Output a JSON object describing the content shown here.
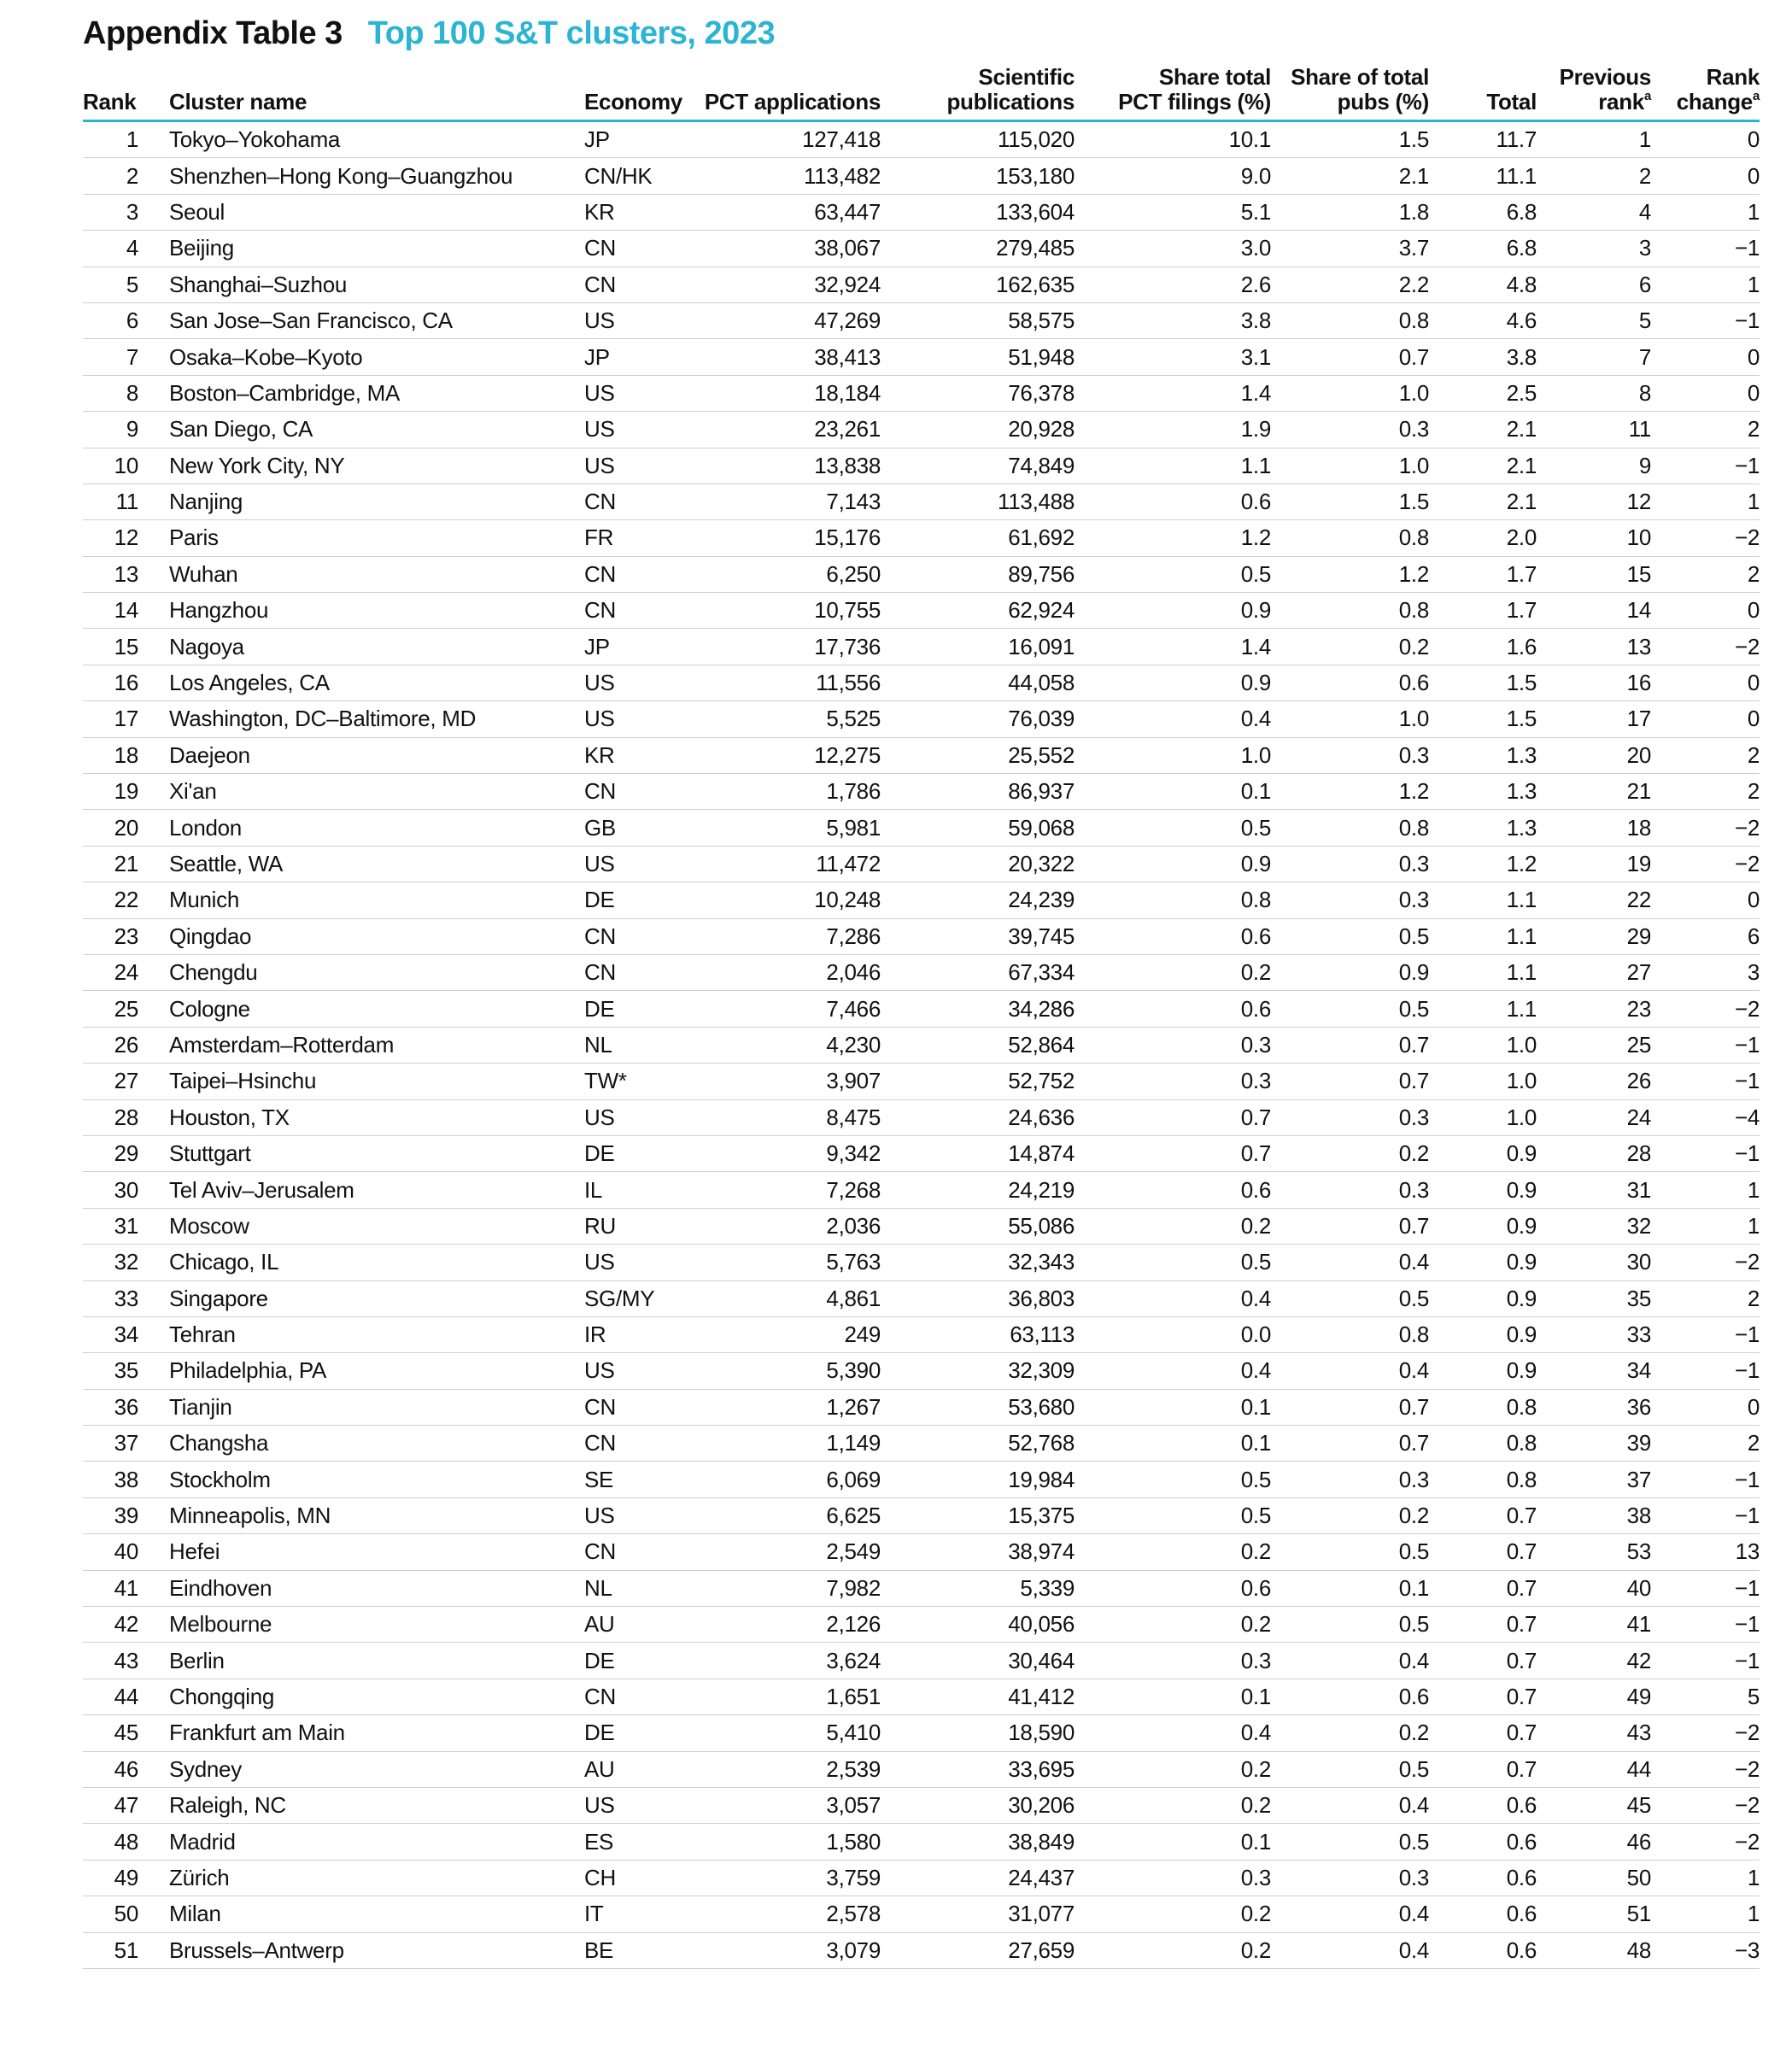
{
  "title": {
    "label": "Appendix Table 3",
    "subtitle": "Top 100 S&T clusters, 2023"
  },
  "colors": {
    "accent": "#2bb5d3",
    "divider": "#cfcfcf"
  },
  "headers": {
    "rank": "Rank",
    "cluster": "Cluster name",
    "economy": "Economy",
    "pct": "PCT applications",
    "sci_1": "Scientific",
    "sci_2": "publications",
    "share_pct_1": "Share total",
    "share_pct_2": "PCT filings (%)",
    "share_pubs_1": "Share of total",
    "share_pubs_2": "pubs (%)",
    "total": "Total",
    "prev_1": "Previous",
    "prev_2": "rank",
    "prev_sup": "a",
    "change_1": "Rank",
    "change_2": "change",
    "change_sup": "a"
  },
  "rows": [
    [
      "1",
      "Tokyo–Yokohama",
      "JP",
      "127,418",
      "115,020",
      "10.1",
      "1.5",
      "11.7",
      "1",
      "0"
    ],
    [
      "2",
      "Shenzhen–Hong Kong–Guangzhou",
      "CN/HK",
      "113,482",
      "153,180",
      "9.0",
      "2.1",
      "11.1",
      "2",
      "0"
    ],
    [
      "3",
      "Seoul",
      "KR",
      "63,447",
      "133,604",
      "5.1",
      "1.8",
      "6.8",
      "4",
      "1"
    ],
    [
      "4",
      "Beijing",
      "CN",
      "38,067",
      "279,485",
      "3.0",
      "3.7",
      "6.8",
      "3",
      "−1"
    ],
    [
      "5",
      "Shanghai–Suzhou",
      "CN",
      "32,924",
      "162,635",
      "2.6",
      "2.2",
      "4.8",
      "6",
      "1"
    ],
    [
      "6",
      "San Jose–San Francisco, CA",
      "US",
      "47,269",
      "58,575",
      "3.8",
      "0.8",
      "4.6",
      "5",
      "−1"
    ],
    [
      "7",
      "Osaka–Kobe–Kyoto",
      "JP",
      "38,413",
      "51,948",
      "3.1",
      "0.7",
      "3.8",
      "7",
      "0"
    ],
    [
      "8",
      "Boston–Cambridge, MA",
      "US",
      "18,184",
      "76,378",
      "1.4",
      "1.0",
      "2.5",
      "8",
      "0"
    ],
    [
      "9",
      "San Diego, CA",
      "US",
      "23,261",
      "20,928",
      "1.9",
      "0.3",
      "2.1",
      "11",
      "2"
    ],
    [
      "10",
      "New York City, NY",
      "US",
      "13,838",
      "74,849",
      "1.1",
      "1.0",
      "2.1",
      "9",
      "−1"
    ],
    [
      "11",
      "Nanjing",
      "CN",
      "7,143",
      "113,488",
      "0.6",
      "1.5",
      "2.1",
      "12",
      "1"
    ],
    [
      "12",
      "Paris",
      "FR",
      "15,176",
      "61,692",
      "1.2",
      "0.8",
      "2.0",
      "10",
      "−2"
    ],
    [
      "13",
      "Wuhan",
      "CN",
      "6,250",
      "89,756",
      "0.5",
      "1.2",
      "1.7",
      "15",
      "2"
    ],
    [
      "14",
      "Hangzhou",
      "CN",
      "10,755",
      "62,924",
      "0.9",
      "0.8",
      "1.7",
      "14",
      "0"
    ],
    [
      "15",
      "Nagoya",
      "JP",
      "17,736",
      "16,091",
      "1.4",
      "0.2",
      "1.6",
      "13",
      "−2"
    ],
    [
      "16",
      "Los Angeles, CA",
      "US",
      "11,556",
      "44,058",
      "0.9",
      "0.6",
      "1.5",
      "16",
      "0"
    ],
    [
      "17",
      "Washington, DC–Baltimore, MD",
      "US",
      "5,525",
      "76,039",
      "0.4",
      "1.0",
      "1.5",
      "17",
      "0"
    ],
    [
      "18",
      "Daejeon",
      "KR",
      "12,275",
      "25,552",
      "1.0",
      "0.3",
      "1.3",
      "20",
      "2"
    ],
    [
      "19",
      "Xi'an",
      "CN",
      "1,786",
      "86,937",
      "0.1",
      "1.2",
      "1.3",
      "21",
      "2"
    ],
    [
      "20",
      "London",
      "GB",
      "5,981",
      "59,068",
      "0.5",
      "0.8",
      "1.3",
      "18",
      "−2"
    ],
    [
      "21",
      "Seattle, WA",
      "US",
      "11,472",
      "20,322",
      "0.9",
      "0.3",
      "1.2",
      "19",
      "−2"
    ],
    [
      "22",
      "Munich",
      "DE",
      "10,248",
      "24,239",
      "0.8",
      "0.3",
      "1.1",
      "22",
      "0"
    ],
    [
      "23",
      "Qingdao",
      "CN",
      "7,286",
      "39,745",
      "0.6",
      "0.5",
      "1.1",
      "29",
      "6"
    ],
    [
      "24",
      "Chengdu",
      "CN",
      "2,046",
      "67,334",
      "0.2",
      "0.9",
      "1.1",
      "27",
      "3"
    ],
    [
      "25",
      "Cologne",
      "DE",
      "7,466",
      "34,286",
      "0.6",
      "0.5",
      "1.1",
      "23",
      "−2"
    ],
    [
      "26",
      "Amsterdam–Rotterdam",
      "NL",
      "4,230",
      "52,864",
      "0.3",
      "0.7",
      "1.0",
      "25",
      "−1"
    ],
    [
      "27",
      "Taipei–Hsinchu",
      "TW*",
      "3,907",
      "52,752",
      "0.3",
      "0.7",
      "1.0",
      "26",
      "−1"
    ],
    [
      "28",
      "Houston, TX",
      "US",
      "8,475",
      "24,636",
      "0.7",
      "0.3",
      "1.0",
      "24",
      "−4"
    ],
    [
      "29",
      "Stuttgart",
      "DE",
      "9,342",
      "14,874",
      "0.7",
      "0.2",
      "0.9",
      "28",
      "−1"
    ],
    [
      "30",
      "Tel Aviv–Jerusalem",
      "IL",
      "7,268",
      "24,219",
      "0.6",
      "0.3",
      "0.9",
      "31",
      "1"
    ],
    [
      "31",
      "Moscow",
      "RU",
      "2,036",
      "55,086",
      "0.2",
      "0.7",
      "0.9",
      "32",
      "1"
    ],
    [
      "32",
      "Chicago, IL",
      "US",
      "5,763",
      "32,343",
      "0.5",
      "0.4",
      "0.9",
      "30",
      "−2"
    ],
    [
      "33",
      "Singapore",
      "SG/MY",
      "4,861",
      "36,803",
      "0.4",
      "0.5",
      "0.9",
      "35",
      "2"
    ],
    [
      "34",
      "Tehran",
      "IR",
      "249",
      "63,113",
      "0.0",
      "0.8",
      "0.9",
      "33",
      "−1"
    ],
    [
      "35",
      "Philadelphia, PA",
      "US",
      "5,390",
      "32,309",
      "0.4",
      "0.4",
      "0.9",
      "34",
      "−1"
    ],
    [
      "36",
      "Tianjin",
      "CN",
      "1,267",
      "53,680",
      "0.1",
      "0.7",
      "0.8",
      "36",
      "0"
    ],
    [
      "37",
      "Changsha",
      "CN",
      "1,149",
      "52,768",
      "0.1",
      "0.7",
      "0.8",
      "39",
      "2"
    ],
    [
      "38",
      "Stockholm",
      "SE",
      "6,069",
      "19,984",
      "0.5",
      "0.3",
      "0.8",
      "37",
      "−1"
    ],
    [
      "39",
      "Minneapolis, MN",
      "US",
      "6,625",
      "15,375",
      "0.5",
      "0.2",
      "0.7",
      "38",
      "−1"
    ],
    [
      "40",
      "Hefei",
      "CN",
      "2,549",
      "38,974",
      "0.2",
      "0.5",
      "0.7",
      "53",
      "13"
    ],
    [
      "41",
      "Eindhoven",
      "NL",
      "7,982",
      "5,339",
      "0.6",
      "0.1",
      "0.7",
      "40",
      "−1"
    ],
    [
      "42",
      "Melbourne",
      "AU",
      "2,126",
      "40,056",
      "0.2",
      "0.5",
      "0.7",
      "41",
      "−1"
    ],
    [
      "43",
      "Berlin",
      "DE",
      "3,624",
      "30,464",
      "0.3",
      "0.4",
      "0.7",
      "42",
      "−1"
    ],
    [
      "44",
      "Chongqing",
      "CN",
      "1,651",
      "41,412",
      "0.1",
      "0.6",
      "0.7",
      "49",
      "5"
    ],
    [
      "45",
      "Frankfurt am Main",
      "DE",
      "5,410",
      "18,590",
      "0.4",
      "0.2",
      "0.7",
      "43",
      "−2"
    ],
    [
      "46",
      "Sydney",
      "AU",
      "2,539",
      "33,695",
      "0.2",
      "0.5",
      "0.7",
      "44",
      "−2"
    ],
    [
      "47",
      "Raleigh, NC",
      "US",
      "3,057",
      "30,206",
      "0.2",
      "0.4",
      "0.6",
      "45",
      "−2"
    ],
    [
      "48",
      "Madrid",
      "ES",
      "1,580",
      "38,849",
      "0.1",
      "0.5",
      "0.6",
      "46",
      "−2"
    ],
    [
      "49",
      "Zürich",
      "CH",
      "3,759",
      "24,437",
      "0.3",
      "0.3",
      "0.6",
      "50",
      "1"
    ],
    [
      "50",
      "Milan",
      "IT",
      "2,578",
      "31,077",
      "0.2",
      "0.4",
      "0.6",
      "51",
      "1"
    ],
    [
      "51",
      "Brussels–Antwerp",
      "BE",
      "3,079",
      "27,659",
      "0.2",
      "0.4",
      "0.6",
      "48",
      "−3"
    ]
  ]
}
